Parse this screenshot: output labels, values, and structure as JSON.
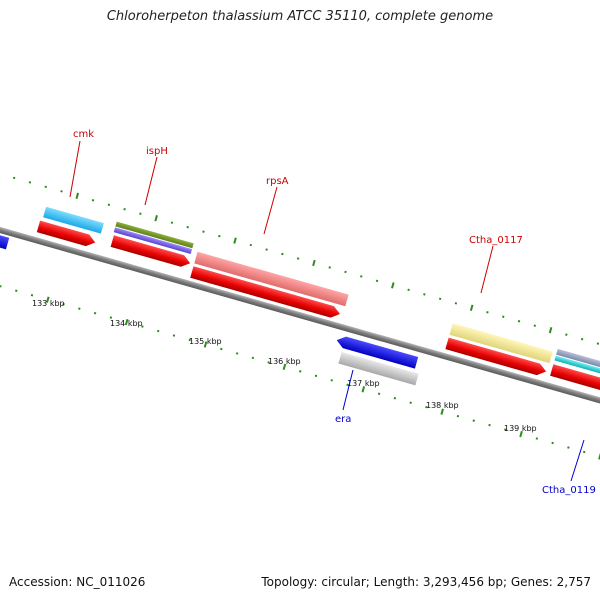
{
  "title": "Chloroherpeton thalassium ATCC 35110, complete genome",
  "footer": {
    "accession": "Accession: NC_011026",
    "topology": "Topology: circular; Length: 3,293,456 bp; Genes: 2,757"
  },
  "colors": {
    "backbone": "#8a8a8a",
    "tick": "#2e8b1e",
    "cds": "#ff1a1a",
    "forward_label": "#cc0000",
    "reverse_label": "#0000cc"
  },
  "kbp_labels": [
    "133 kbp",
    "134 kbp",
    "135 kbp",
    "136 kbp",
    "137 kbp",
    "138 kbp",
    "139 kbp"
  ],
  "forward_gene_labels": [
    "cmk",
    "ispH",
    "rpsA",
    "Ctha_0117"
  ],
  "reverse_gene_labels": [
    "era",
    "Ctha_0119"
  ]
}
